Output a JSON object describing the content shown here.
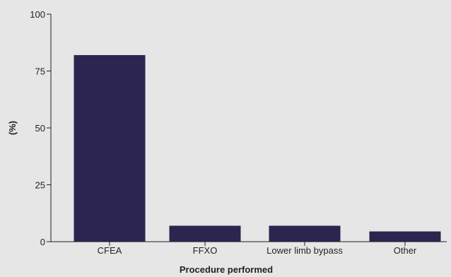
{
  "chart_data": {
    "type": "bar",
    "categories": [
      "CFEA",
      "FFXO",
      "Lower limb bypass",
      "Other"
    ],
    "values": [
      82,
      7,
      7,
      4.5
    ],
    "xlabel": "Procedure performed",
    "ylabel": "(%)",
    "ylim": [
      0,
      100
    ],
    "yticks": [
      0,
      25,
      50,
      75,
      100
    ],
    "bar_color": "#2b2550",
    "background_color": "#e6e6e6",
    "axis_color": "#231f20",
    "grid": false,
    "legend": "none"
  }
}
